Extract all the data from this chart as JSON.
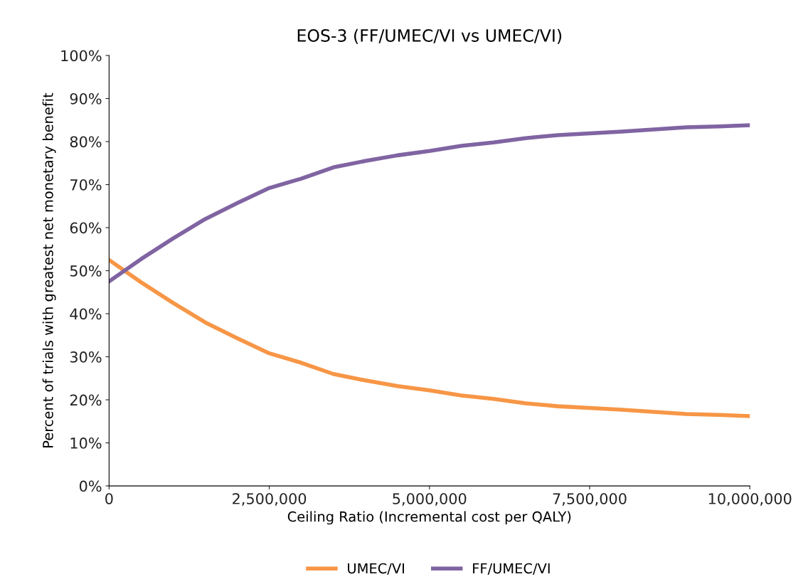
{
  "chart_data": {
    "type": "line",
    "title": "EOS-3 (FF/UMEC/VI vs UMEC/VI)",
    "xlabel": "Ceiling Ratio (Incremental cost per QALY)",
    "ylabel": "Percent of trials with greatest net monetary benefit",
    "x": [
      0,
      500000,
      1000000,
      1500000,
      2000000,
      2500000,
      3000000,
      3500000,
      4000000,
      4500000,
      5000000,
      5500000,
      6000000,
      6500000,
      7000000,
      7500000,
      8000000,
      8500000,
      9000000,
      9500000,
      10000000
    ],
    "series": [
      {
        "name": "UMEC/VI",
        "color": "#f79646",
        "values": [
          52.5,
          47.3,
          42.5,
          38,
          34.3,
          30.8,
          28.6,
          26,
          24.5,
          23.2,
          22.2,
          21,
          20.2,
          19.2,
          18.5,
          18.1,
          17.7,
          17.2,
          16.7,
          16.5,
          16.2
        ]
      },
      {
        "name": "FF/UMEC/VI",
        "color": "#8064a2",
        "values": [
          47.5,
          52.7,
          57.5,
          62,
          65.7,
          69.2,
          71.4,
          74,
          75.5,
          76.8,
          77.8,
          79,
          79.8,
          80.8,
          81.5,
          81.9,
          82.3,
          82.8,
          83.3,
          83.5,
          83.8
        ]
      }
    ],
    "xlim": [
      0,
      10000000
    ],
    "xticks": [
      0,
      {
        "value": 2500000,
        "label": "2,500,000"
      },
      {
        "value": 5000000,
        "label": "5,000,000"
      },
      {
        "value": 7500000,
        "label": "7,500,000"
      },
      {
        "value": 10000000,
        "label": "10,000,000"
      }
    ],
    "ylim": [
      0,
      100
    ],
    "yticks": [
      {
        "value": 0,
        "label": "0%"
      },
      {
        "value": 10,
        "label": "10%"
      },
      {
        "value": 20,
        "label": "20%"
      },
      {
        "value": 30,
        "label": "30%"
      },
      {
        "value": 40,
        "label": "40%"
      },
      {
        "value": 50,
        "label": "50%"
      },
      {
        "value": 60,
        "label": "60%"
      },
      {
        "value": 70,
        "label": "70%"
      },
      {
        "value": 80,
        "label": "80%"
      },
      {
        "value": 90,
        "label": "90%"
      },
      {
        "value": 100,
        "label": "100%"
      }
    ],
    "grid": false,
    "legend": "bottom",
    "marker": "none",
    "line_style": "solid"
  }
}
